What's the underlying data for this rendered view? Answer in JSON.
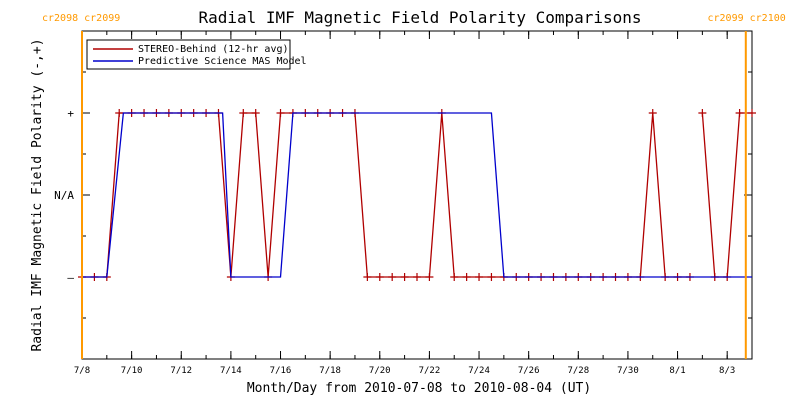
{
  "chart_data": {
    "type": "line",
    "title": "Radial IMF Magnetic Field Polarity Comparisons",
    "xlabel": "Month/Day from 2010-07-08 to 2010-08-04 (UT)",
    "ylabel": "Radial IMF Magnetic Field Polarity (-,+)",
    "xlim": [
      "2010-07-08",
      "2010-08-04"
    ],
    "ylim": [
      -2,
      2
    ],
    "x_ticks": [
      {
        "date": "2010-07-08",
        "label": "7/8"
      },
      {
        "date": "2010-07-10",
        "label": "7/10"
      },
      {
        "date": "2010-07-12",
        "label": "7/12"
      },
      {
        "date": "2010-07-14",
        "label": "7/14"
      },
      {
        "date": "2010-07-16",
        "label": "7/16"
      },
      {
        "date": "2010-07-18",
        "label": "7/18"
      },
      {
        "date": "2010-07-20",
        "label": "7/20"
      },
      {
        "date": "2010-07-22",
        "label": "7/22"
      },
      {
        "date": "2010-07-24",
        "label": "7/24"
      },
      {
        "date": "2010-07-26",
        "label": "7/26"
      },
      {
        "date": "2010-07-28",
        "label": "7/28"
      },
      {
        "date": "2010-07-30",
        "label": "7/30"
      },
      {
        "date": "2010-08-01",
        "label": "8/1"
      },
      {
        "date": "2010-08-03",
        "label": "8/3"
      }
    ],
    "y_ticks": [
      {
        "value": 1,
        "label": "+"
      },
      {
        "value": 0,
        "label": "N/A"
      },
      {
        "value": -1,
        "label": "–"
      }
    ],
    "rotation_markers": [
      {
        "date": "2010-07-08",
        "labels": [
          "cr2098",
          "cr2099"
        ],
        "label_align": "left"
      },
      {
        "date": "2010-08-03 18:00",
        "labels": [
          "cr2099",
          "cr2100"
        ],
        "label_align": "right"
      }
    ],
    "marker_color": "#ff9900",
    "legend_position": "top-left",
    "series": [
      {
        "name": "STEREO-Behind (12-hr avg)",
        "color": "#b00000",
        "marker": "plus",
        "points": [
          [
            "2010-07-08 00:00",
            -1
          ],
          [
            "2010-07-08 12:00",
            -1
          ],
          [
            "2010-07-09 00:00",
            -1
          ],
          [
            "2010-07-09 12:00",
            1
          ],
          [
            "2010-07-10 00:00",
            1
          ],
          [
            "2010-07-10 12:00",
            1
          ],
          [
            "2010-07-11 00:00",
            1
          ],
          [
            "2010-07-11 12:00",
            1
          ],
          [
            "2010-07-12 00:00",
            1
          ],
          [
            "2010-07-12 12:00",
            1
          ],
          [
            "2010-07-13 00:00",
            1
          ],
          [
            "2010-07-13 12:00",
            1
          ],
          [
            "2010-07-14 00:00",
            -1
          ],
          [
            "2010-07-14 12:00",
            1
          ],
          [
            "2010-07-15 00:00",
            1
          ],
          [
            "2010-07-15 12:00",
            -1
          ],
          [
            "2010-07-16 00:00",
            1
          ],
          [
            "2010-07-16 12:00",
            1
          ],
          [
            "2010-07-17 00:00",
            1
          ],
          [
            "2010-07-17 12:00",
            1
          ],
          [
            "2010-07-18 00:00",
            1
          ],
          [
            "2010-07-18 12:00",
            1
          ],
          [
            "2010-07-19 00:00",
            1
          ],
          [
            "2010-07-19 12:00",
            -1
          ],
          [
            "2010-07-20 00:00",
            -1
          ],
          [
            "2010-07-20 12:00",
            -1
          ],
          [
            "2010-07-21 00:00",
            -1
          ],
          [
            "2010-07-21 12:00",
            -1
          ],
          [
            "2010-07-22 00:00",
            -1
          ],
          [
            "2010-07-22 12:00",
            1
          ],
          [
            "2010-07-23 00:00",
            -1
          ],
          [
            "2010-07-23 12:00",
            -1
          ],
          [
            "2010-07-24 00:00",
            -1
          ],
          [
            "2010-07-24 12:00",
            -1
          ],
          [
            "2010-07-25 00:00",
            -1
          ],
          [
            "2010-07-25 12:00",
            -1
          ],
          [
            "2010-07-26 00:00",
            -1
          ],
          [
            "2010-07-26 12:00",
            -1
          ],
          [
            "2010-07-27 00:00",
            -1
          ],
          [
            "2010-07-27 12:00",
            -1
          ],
          [
            "2010-07-28 00:00",
            -1
          ],
          [
            "2010-07-28 12:00",
            -1
          ],
          [
            "2010-07-29 00:00",
            -1
          ],
          [
            "2010-07-29 12:00",
            -1
          ],
          [
            "2010-07-30 00:00",
            -1
          ],
          [
            "2010-07-30 12:00",
            -1
          ],
          [
            "2010-07-31 00:00",
            1
          ],
          [
            "2010-07-31 12:00",
            -1
          ],
          [
            "2010-08-01 00:00",
            -1
          ],
          [
            "2010-08-01 12:00",
            -1
          ],
          [
            "2010-08-02 00:00",
            1
          ],
          [
            "2010-08-02 12:00",
            -1
          ],
          [
            "2010-08-03 00:00",
            -1
          ],
          [
            "2010-08-03 12:00",
            1
          ],
          [
            "2010-08-04 00:00",
            1
          ]
        ],
        "gaps_after": [
          "2010-08-01 12:00"
        ]
      },
      {
        "name": "Predictive Science MAS Model",
        "color": "#0000cc",
        "marker": "none",
        "points": [
          [
            "2010-07-08 00:00",
            -1
          ],
          [
            "2010-07-09 00:00",
            -1
          ],
          [
            "2010-07-09 16:00",
            1
          ],
          [
            "2010-07-13 16:00",
            1
          ],
          [
            "2010-07-14 00:00",
            -1
          ],
          [
            "2010-07-16 00:00",
            -1
          ],
          [
            "2010-07-16 12:00",
            1
          ],
          [
            "2010-07-24 12:00",
            1
          ],
          [
            "2010-07-25 00:00",
            -1
          ],
          [
            "2010-08-04 00:00",
            -1
          ]
        ]
      }
    ]
  }
}
